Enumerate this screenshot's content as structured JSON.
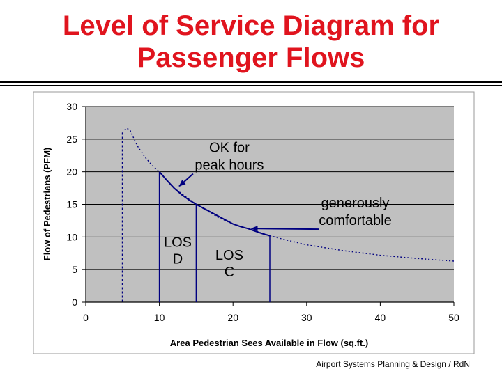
{
  "title_line1": "Level of Service Diagram for",
  "title_line2": "Passenger Flows",
  "footer": "Airport Systems Planning & Design / RdN",
  "chart_data": {
    "type": "line",
    "xlabel": "Area Pedestrian Sees Available in Flow (sq.ft.)",
    "ylabel": "Flow of Pedestrians (PFM)",
    "xlim": [
      0,
      50
    ],
    "ylim": [
      0,
      30
    ],
    "xticks": [
      0,
      10,
      20,
      30,
      40,
      50
    ],
    "yticks": [
      0,
      5,
      10,
      15,
      20,
      25,
      30
    ],
    "grid": true,
    "series": [
      {
        "style": "dotted",
        "x": [
          5,
          5.5,
          6,
          6.5,
          7,
          8,
          9,
          10,
          12,
          15,
          18,
          20,
          22,
          25,
          27,
          30,
          35,
          40,
          45,
          50
        ],
        "y": [
          26,
          26.7,
          26.4,
          25.2,
          24,
          22.3,
          21,
          20,
          17.5,
          15,
          13,
          12,
          11.3,
          10.2,
          9.6,
          8.8,
          7.9,
          7.2,
          6.7,
          6.3
        ]
      },
      {
        "style": "solid",
        "x": [
          10,
          11,
          12,
          13,
          14,
          15,
          16,
          17,
          18,
          19,
          20,
          21,
          22,
          23,
          24,
          25
        ],
        "y": [
          20,
          18.7,
          17.5,
          16.5,
          15.7,
          15,
          14.4,
          13.8,
          13.2,
          12.6,
          12,
          11.6,
          11.3,
          10.9,
          10.5,
          10.2
        ]
      }
    ],
    "vertical_lines": [
      {
        "x": 5,
        "y_top": 26,
        "style": "dotted"
      },
      {
        "x": 10,
        "y_top": 20,
        "style": "solid"
      },
      {
        "x": 15,
        "y_top": 15,
        "style": "solid"
      },
      {
        "x": 25,
        "y_top": 10.2,
        "style": "solid"
      }
    ],
    "region_labels": [
      {
        "lines": [
          "LOS",
          "D"
        ],
        "x": 12.5,
        "y": 8.5
      },
      {
        "lines": [
          "LOS",
          "C"
        ],
        "x": 19.5,
        "y": 6.5
      }
    ],
    "annotations": [
      {
        "lines": [
          "OK for",
          "peak hours"
        ],
        "text_x": 19.5,
        "text_y": 23,
        "arrow_to": [
          12.7,
          17.8
        ]
      },
      {
        "lines": [
          "generously",
          "comfortable"
        ],
        "text_x": 36.6,
        "text_y": 14.5,
        "arrow_to": [
          22.5,
          11.3
        ]
      }
    ]
  }
}
